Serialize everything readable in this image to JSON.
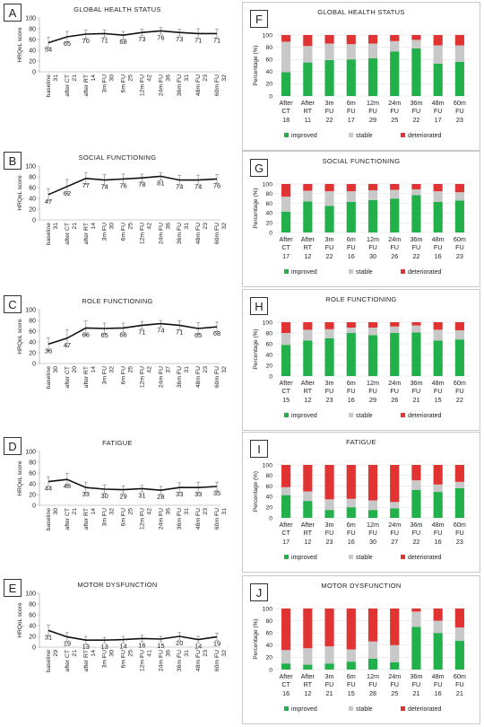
{
  "colors": {
    "improved": "#22b04b",
    "stable": "#c8c8c8",
    "deteriorated": "#e23333",
    "line": "#111111",
    "error": "#888888",
    "grid": "#dddddd"
  },
  "chart_data": [
    {
      "type": "line",
      "letter": "A",
      "title": "GLOBAL HEALTH STATUS",
      "ylabel": "HRQoL score",
      "ylim": [
        0,
        100
      ],
      "yticks": [
        "0",
        "20",
        "40",
        "60",
        "80",
        "100"
      ],
      "categories": [
        "baseline",
        "after CT",
        "after RT",
        "3m FU",
        "6m FU",
        "12m FU",
        "24m FU",
        "36m FU",
        "48m FU",
        "60m FU"
      ],
      "ns": [
        "31",
        "21",
        "14",
        "30",
        "25",
        "42",
        "36",
        "31",
        "23",
        "32"
      ],
      "values": [
        54,
        65,
        70,
        71,
        68,
        73,
        76,
        73,
        71,
        71
      ],
      "labels": [
        "54",
        "65",
        "70",
        "71",
        "68",
        "73",
        "76",
        "73",
        "71",
        "71"
      ],
      "err": [
        10,
        10,
        8,
        7,
        7,
        6,
        6,
        6,
        9,
        8
      ]
    },
    {
      "type": "line",
      "letter": "B",
      "title": "SOCIAL FUNCTIONING",
      "ylabel": "HRQoL score",
      "ylim": [
        0,
        100
      ],
      "yticks": [
        "0",
        "20",
        "40",
        "60",
        "80",
        "100"
      ],
      "categories": [
        "baseline",
        "after CT",
        "after RT",
        "3m FU",
        "6m FU",
        "12m FU",
        "24m FU",
        "36m FU",
        "48m FU",
        "60m FU"
      ],
      "ns": [
        "31",
        "21",
        "14",
        "30",
        "25",
        "42",
        "36",
        "31",
        "23",
        "32"
      ],
      "values": [
        47,
        62,
        77,
        74,
        76,
        78,
        81,
        74,
        74,
        76
      ],
      "labels": [
        "47",
        "62",
        "77",
        "74",
        "76",
        "78",
        "81",
        "74",
        "74",
        "76"
      ],
      "err": [
        11,
        13,
        11,
        10,
        9,
        7,
        7,
        9,
        9,
        8
      ]
    },
    {
      "type": "line",
      "letter": "C",
      "title": "ROLE FUNCTIONING",
      "ylabel": "HRQoL score",
      "ylim": [
        0,
        100
      ],
      "yticks": [
        "0",
        "20",
        "40",
        "60",
        "80",
        "100"
      ],
      "categories": [
        "baseline",
        "after CT",
        "after RT",
        "3m FU",
        "6m FU",
        "12m FU",
        "24m FU",
        "36m FU",
        "48m FU",
        "60m FU"
      ],
      "ns": [
        "30",
        "20",
        "14",
        "32",
        "25",
        "42",
        "37",
        "31",
        "23",
        "32"
      ],
      "values": [
        36,
        47,
        66,
        65,
        66,
        71,
        74,
        71,
        65,
        68
      ],
      "labels": [
        "36",
        "47",
        "66",
        "65",
        "66",
        "71",
        "74",
        "71",
        "65",
        "68"
      ],
      "err": [
        12,
        16,
        13,
        10,
        9,
        7,
        6,
        8,
        11,
        9
      ]
    },
    {
      "type": "line",
      "letter": "D",
      "title": "FATIGUE",
      "ylabel": "HRQoL score",
      "ylim": [
        0,
        100
      ],
      "yticks": [
        "0",
        "20",
        "40",
        "60",
        "80",
        "100"
      ],
      "categories": [
        "baseline",
        "after CT",
        "after RT",
        "3m FU",
        "6m FU",
        "12m FU",
        "24m FU",
        "36m FU",
        "48m FU",
        "60m FU"
      ],
      "ns": [
        "30",
        "21",
        "14",
        "32",
        "25",
        "42",
        "36",
        "31",
        "23",
        "31"
      ],
      "values": [
        44,
        48,
        33,
        30,
        29,
        31,
        28,
        33,
        33,
        35
      ],
      "labels": [
        "44",
        "48",
        "33",
        "30",
        "29",
        "31",
        "28",
        "33",
        "33",
        "35"
      ],
      "err": [
        9,
        11,
        10,
        8,
        7,
        6,
        7,
        9,
        10,
        8
      ]
    },
    {
      "type": "line",
      "letter": "E",
      "title": "MOTOR DYSFUNCTION",
      "ylabel": "HRQoL score",
      "ylim": [
        0,
        100
      ],
      "yticks": [
        "0",
        "20",
        "40",
        "60",
        "80",
        "100"
      ],
      "categories": [
        "baseline",
        "after CT",
        "after RT",
        "3m FU",
        "6m FU",
        "12m FU",
        "24m FU",
        "36m FU",
        "48m FU",
        "60m FU"
      ],
      "ns": [
        "29",
        "21",
        "14",
        "30",
        "25",
        "41",
        "36",
        "31",
        "23",
        "32"
      ],
      "values": [
        31,
        19,
        13,
        13,
        14,
        16,
        15,
        20,
        14,
        19
      ],
      "labels": [
        "31",
        "19",
        "13",
        "13",
        "14",
        "16",
        "15",
        "20",
        "14",
        "19"
      ],
      "err": [
        10,
        8,
        7,
        5,
        6,
        6,
        5,
        7,
        6,
        7
      ]
    },
    {
      "type": "bar",
      "stacked": true,
      "letter": "F",
      "title": "GLOBAL HEALTH STATUS",
      "ylabel": "Percentage (%)",
      "ylim": [
        0,
        100
      ],
      "yticks": [
        "0",
        "20",
        "40",
        "60",
        "80",
        "100"
      ],
      "categories": [
        [
          "After",
          "CT"
        ],
        [
          "After",
          "RT"
        ],
        [
          "3m",
          "FU"
        ],
        [
          "6m",
          "FU"
        ],
        [
          "12m",
          "FU"
        ],
        [
          "24m",
          "FU"
        ],
        [
          "36m",
          "FU"
        ],
        [
          "48m",
          "FU"
        ],
        [
          "60m",
          "FU"
        ]
      ],
      "ns": [
        "18",
        "11",
        "22",
        "17",
        "29",
        "25",
        "22",
        "17",
        "23"
      ],
      "series": [
        {
          "name": "improved",
          "values": [
            39,
            55,
            59,
            60,
            62,
            73,
            78,
            53,
            56
          ]
        },
        {
          "name": "stable",
          "values": [
            50,
            27,
            27,
            25,
            24,
            17,
            14,
            30,
            27
          ]
        },
        {
          "name": "deteriorated",
          "values": [
            11,
            18,
            14,
            15,
            14,
            10,
            8,
            17,
            17
          ]
        }
      ]
    },
    {
      "type": "bar",
      "stacked": true,
      "letter": "G",
      "title": "SOCIAL FUNCTIONING",
      "ylabel": "Percentage (%)",
      "ylim": [
        0,
        100
      ],
      "yticks": [
        "0",
        "20",
        "40",
        "60",
        "80",
        "100"
      ],
      "categories": [
        [
          "After",
          "CT"
        ],
        [
          "After",
          "RT"
        ],
        [
          "3m",
          "FU"
        ],
        [
          "6m",
          "FU"
        ],
        [
          "12m",
          "FU"
        ],
        [
          "24m",
          "FU"
        ],
        [
          "36m",
          "FU"
        ],
        [
          "48m",
          "FU"
        ],
        [
          "60m",
          "FU"
        ]
      ],
      "ns": [
        "17",
        "12",
        "22",
        "16",
        "30",
        "26",
        "22",
        "16",
        "23"
      ],
      "series": [
        {
          "name": "improved",
          "values": [
            43,
            64,
            55,
            63,
            67,
            70,
            77,
            63,
            66
          ]
        },
        {
          "name": "stable",
          "values": [
            31,
            22,
            30,
            22,
            20,
            18,
            12,
            22,
            17
          ]
        },
        {
          "name": "deteriorated",
          "values": [
            26,
            14,
            15,
            15,
            13,
            12,
            11,
            15,
            17
          ]
        }
      ]
    },
    {
      "type": "bar",
      "stacked": true,
      "letter": "H",
      "title": "ROLE FUNCTIONING",
      "ylabel": "Percentage (%)",
      "ylim": [
        0,
        100
      ],
      "yticks": [
        "0",
        "20",
        "40",
        "60",
        "80",
        "100"
      ],
      "categories": [
        [
          "After",
          "CT"
        ],
        [
          "After",
          "RT"
        ],
        [
          "3m",
          "FU"
        ],
        [
          "6m",
          "FU"
        ],
        [
          "12m",
          "FU"
        ],
        [
          "24m",
          "FU"
        ],
        [
          "36m",
          "FU"
        ],
        [
          "48m",
          "FU"
        ],
        [
          "60m",
          "FU"
        ]
      ],
      "ns": [
        "15",
        "12",
        "23",
        "16",
        "29",
        "26",
        "21",
        "15",
        "22"
      ],
      "series": [
        {
          "name": "improved",
          "values": [
            58,
            66,
            70,
            80,
            76,
            80,
            81,
            66,
            68
          ]
        },
        {
          "name": "stable",
          "values": [
            22,
            20,
            17,
            10,
            14,
            12,
            13,
            20,
            17
          ]
        },
        {
          "name": "deteriorated",
          "values": [
            20,
            14,
            13,
            10,
            10,
            8,
            6,
            14,
            15
          ]
        }
      ]
    },
    {
      "type": "bar",
      "stacked": true,
      "letter": "I",
      "title": "FATIGUE",
      "ylabel": "Percentage (%)",
      "ylim": [
        0,
        100
      ],
      "yticks": [
        "0",
        "20",
        "40",
        "60",
        "80",
        "100"
      ],
      "categories": [
        [
          "After",
          "CT"
        ],
        [
          "After",
          "RT"
        ],
        [
          "3m",
          "FU"
        ],
        [
          "6m",
          "FU"
        ],
        [
          "12m",
          "FU"
        ],
        [
          "24m",
          "FU"
        ],
        [
          "36m",
          "FU"
        ],
        [
          "48m",
          "FU"
        ],
        [
          "60m",
          "FU"
        ]
      ],
      "ns": [
        "17",
        "12",
        "23",
        "16",
        "30",
        "27",
        "22",
        "16",
        "23"
      ],
      "series": [
        {
          "name": "improved",
          "values": [
            43,
            32,
            15,
            20,
            15,
            18,
            53,
            49,
            56
          ]
        },
        {
          "name": "stable",
          "values": [
            15,
            18,
            20,
            16,
            18,
            12,
            18,
            14,
            12
          ]
        },
        {
          "name": "deteriorated",
          "values": [
            42,
            50,
            65,
            64,
            67,
            70,
            29,
            37,
            32
          ]
        }
      ]
    },
    {
      "type": "bar",
      "stacked": true,
      "letter": "J",
      "title": "MOTOR DYSFUNCTION",
      "ylabel": "Percentage (%)",
      "ylim": [
        0,
        100
      ],
      "yticks": [
        "0",
        "20",
        "40",
        "60",
        "80",
        "100"
      ],
      "categories": [
        [
          "After",
          "CT"
        ],
        [
          "After",
          "RT"
        ],
        [
          "3m",
          "FU"
        ],
        [
          "6m",
          "FU"
        ],
        [
          "12m",
          "FU"
        ],
        [
          "24m",
          "FU"
        ],
        [
          "36m",
          "FU"
        ],
        [
          "48m",
          "FU"
        ],
        [
          "60m",
          "FU"
        ]
      ],
      "ns": [
        "16",
        "12",
        "21",
        "15",
        "28",
        "25",
        "21",
        "16",
        "21"
      ],
      "series": [
        {
          "name": "improved",
          "values": [
            10,
            8,
            10,
            13,
            18,
            12,
            70,
            60,
            47
          ]
        },
        {
          "name": "stable",
          "values": [
            22,
            27,
            28,
            20,
            28,
            28,
            25,
            20,
            22
          ]
        },
        {
          "name": "deteriorated",
          "values": [
            68,
            65,
            62,
            67,
            54,
            60,
            5,
            20,
            31
          ]
        }
      ]
    }
  ]
}
